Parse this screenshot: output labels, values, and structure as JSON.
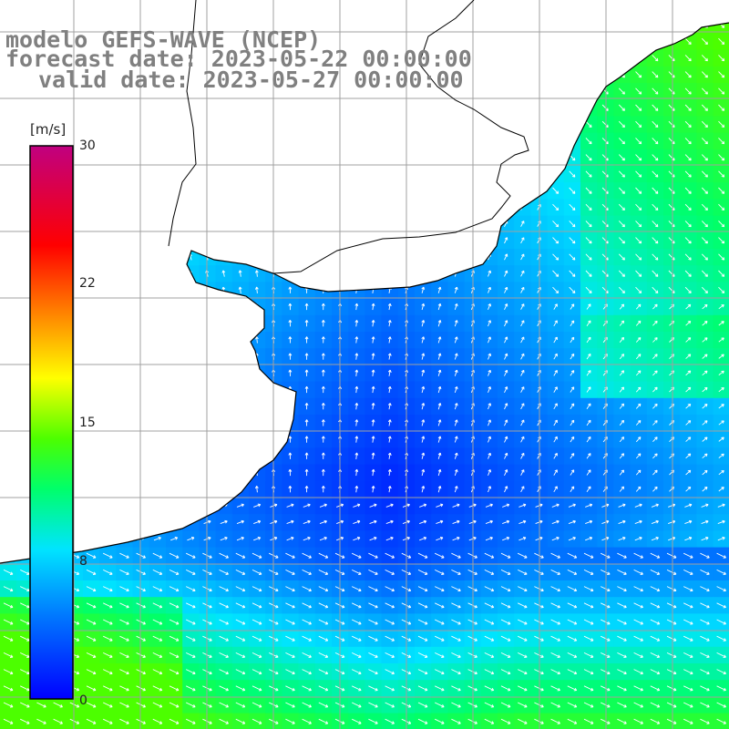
{
  "title": {
    "model": "modelo GEFS-WAVE (NCEP)",
    "forecast": "forecast date: 2023-05-22 00:00:00",
    "valid": "valid date: 2023-05-27 00:00:00"
  },
  "colorbar": {
    "unit": "[m/s]",
    "ticks": [
      "30",
      "22",
      "15",
      "8",
      "0"
    ],
    "colors": [
      "#0000ff",
      "#0078ff",
      "#00e4ff",
      "#00ff6a",
      "#4cff00",
      "#ffff00",
      "#ff8000",
      "#ff0000",
      "#c00080"
    ]
  },
  "map": {
    "type": "wind field with direction arrows",
    "land_color": "#ffffff",
    "grid_color": "#a0a0a0",
    "arrow_color": "#ffffff"
  }
}
